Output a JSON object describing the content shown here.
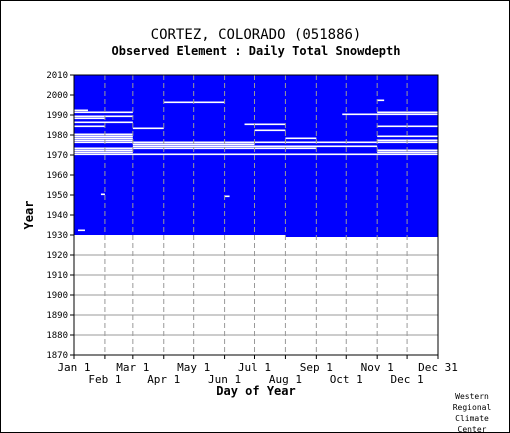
{
  "title": "CORTEZ, COLORADO   (051886)",
  "subtitle": "Observed Element : Daily Total Snowdepth",
  "credit": [
    "Western",
    "Regional",
    "Climate",
    "Center"
  ],
  "colors": {
    "data": "#0000ff",
    "gap": "#ffffff",
    "grid": "#999999"
  },
  "chart_data": {
    "type": "heatmap",
    "xlabel": "Day of Year",
    "ylabel": "Year",
    "ylim": [
      1870,
      2010
    ],
    "xlim": [
      1,
      366
    ],
    "y_ticks": [
      1870,
      1880,
      1890,
      1900,
      1910,
      1920,
      1930,
      1940,
      1950,
      1960,
      1970,
      1980,
      1990,
      2000,
      2010
    ],
    "x_ticks_top": [
      {
        "label": "Jan 1",
        "day": 1
      },
      {
        "label": "Mar 1",
        "day": 60
      },
      {
        "label": "May 1",
        "day": 121
      },
      {
        "label": "Jul 1",
        "day": 182
      },
      {
        "label": "Sep 1",
        "day": 244
      },
      {
        "label": "Nov 1",
        "day": 305
      },
      {
        "label": "Dec 31",
        "day": 366
      }
    ],
    "x_ticks_bottom": [
      {
        "label": "Feb 1",
        "day": 32
      },
      {
        "label": "Apr 1",
        "day": 91
      },
      {
        "label": "Jun 1",
        "day": 152
      },
      {
        "label": "Aug 1",
        "day": 213
      },
      {
        "label": "Oct 1",
        "day": 274
      },
      {
        "label": "Dec 1",
        "day": 335
      }
    ],
    "record": {
      "start_year": 1929,
      "end_year": 2010,
      "start_day_of_year": 213
    },
    "missing_data": [
      {
        "year": 1970,
        "start_day": 1,
        "end_day": 366
      },
      {
        "year": 1971,
        "start_day": 1,
        "end_day": 60
      },
      {
        "year": 1971,
        "start_day": 305,
        "end_day": 366
      },
      {
        "year": 1972,
        "start_day": 1,
        "end_day": 60
      },
      {
        "year": 1972,
        "start_day": 305,
        "end_day": 366
      },
      {
        "year": 1973,
        "start_day": 1,
        "end_day": 244
      },
      {
        "year": 1974,
        "start_day": 60,
        "end_day": 305
      },
      {
        "year": 1975,
        "start_day": 60,
        "end_day": 182
      },
      {
        "year": 1976,
        "start_day": 1,
        "end_day": 366
      },
      {
        "year": 1977,
        "start_day": 1,
        "end_day": 60
      },
      {
        "year": 1977,
        "start_day": 305,
        "end_day": 366
      },
      {
        "year": 1978,
        "start_day": 1,
        "end_day": 60
      },
      {
        "year": 1978,
        "start_day": 213,
        "end_day": 244
      },
      {
        "year": 1979,
        "start_day": 1,
        "end_day": 60
      },
      {
        "year": 1979,
        "start_day": 305,
        "end_day": 366
      },
      {
        "year": 1980,
        "start_day": 1,
        "end_day": 60
      },
      {
        "year": 1982,
        "start_day": 182,
        "end_day": 213
      },
      {
        "year": 1983,
        "start_day": 60,
        "end_day": 91
      },
      {
        "year": 1984,
        "start_day": 1,
        "end_day": 32
      },
      {
        "year": 1984,
        "start_day": 305,
        "end_day": 366
      },
      {
        "year": 1985,
        "start_day": 172,
        "end_day": 213
      },
      {
        "year": 1986,
        "start_day": 1,
        "end_day": 60
      },
      {
        "year": 1988,
        "start_day": 1,
        "end_day": 32
      },
      {
        "year": 1989,
        "start_day": 1,
        "end_day": 60
      },
      {
        "year": 1990,
        "start_day": 270,
        "end_day": 366
      },
      {
        "year": 1991,
        "start_day": 1,
        "end_day": 60
      },
      {
        "year": 1991,
        "start_day": 305,
        "end_day": 366
      },
      {
        "year": 1992,
        "start_day": 1,
        "end_day": 15
      },
      {
        "year": 1996,
        "start_day": 91,
        "end_day": 152
      },
      {
        "year": 1997,
        "start_day": 305,
        "end_day": 312
      },
      {
        "year": 1932,
        "start_day": 5,
        "end_day": 12
      },
      {
        "year": 1950,
        "start_day": 28,
        "end_day": 32
      },
      {
        "year": 1949,
        "start_day": 152,
        "end_day": 157
      }
    ]
  }
}
